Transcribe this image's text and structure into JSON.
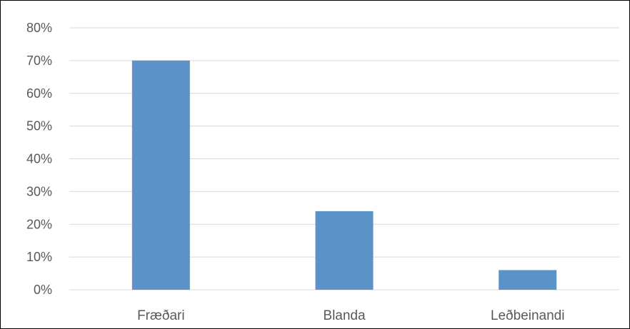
{
  "chart_data": {
    "type": "bar",
    "categories": [
      "Fræðari",
      "Blanda",
      "Leðbeinandi"
    ],
    "values": [
      0.7,
      0.24,
      0.06
    ],
    "ylim": [
      0,
      0.8
    ],
    "yticks": [
      "0%",
      "10%",
      "20%",
      "30%",
      "40%",
      "50%",
      "60%",
      "70%",
      "80%"
    ],
    "grid": true,
    "legend": "none",
    "title": "",
    "xlabel": "",
    "ylabel": "",
    "colors": {
      "bar": "#5b93c9",
      "grid": "#d9d9d9",
      "text": "#595959"
    }
  }
}
